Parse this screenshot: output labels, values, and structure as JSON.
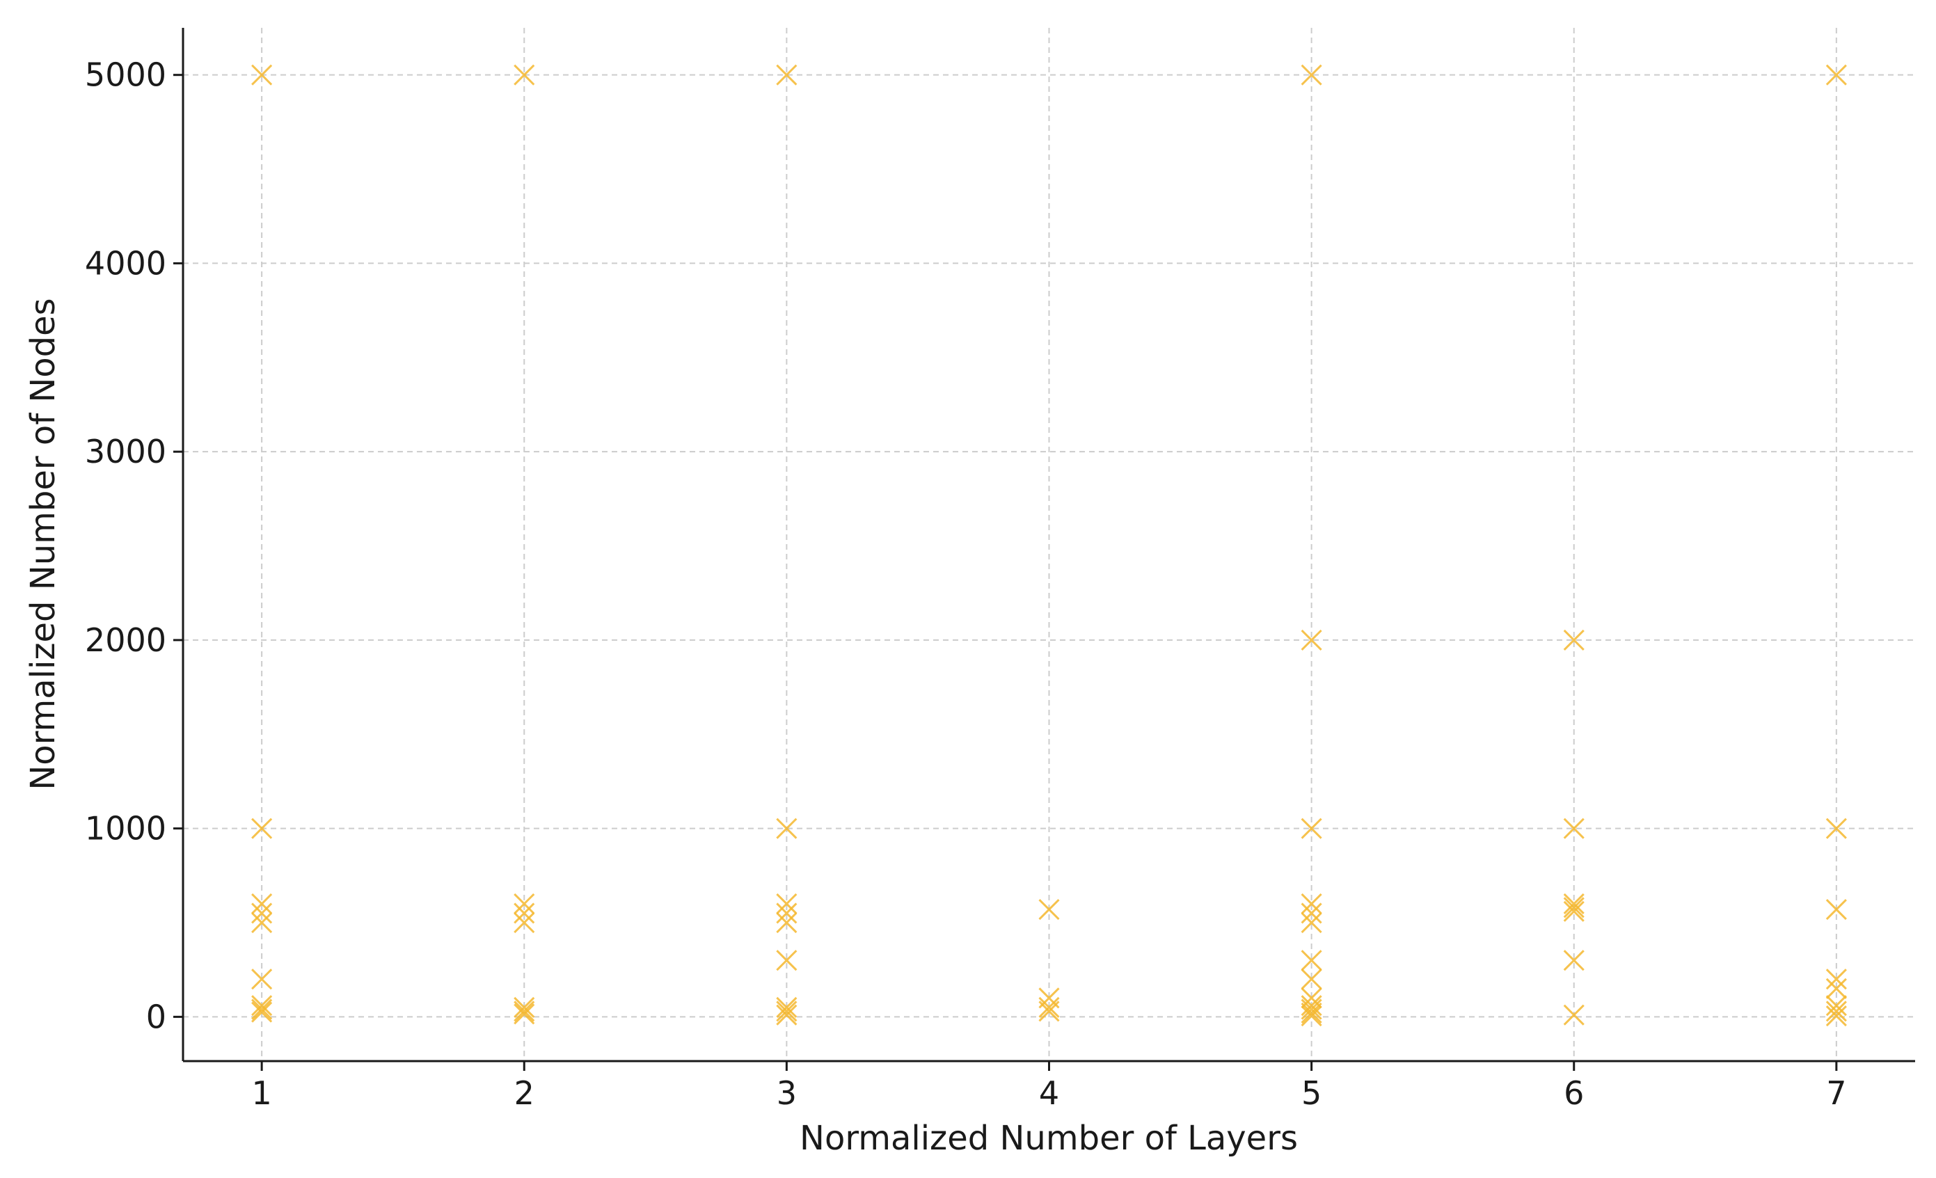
{
  "chart_data": {
    "type": "scatter",
    "title": "",
    "xlabel": "Normalized Number of Layers",
    "ylabel": "Normalized Number of Nodes",
    "xlim": [
      0.7,
      7.3
    ],
    "ylim": [
      -235,
      5250
    ],
    "xticks": [
      1,
      2,
      3,
      4,
      5,
      6,
      7
    ],
    "yticks": [
      0,
      1000,
      2000,
      3000,
      4000,
      5000
    ],
    "grid": true,
    "marker": "x",
    "color": "#f5b82e",
    "points": [
      {
        "x": 1,
        "y": 5000
      },
      {
        "x": 1,
        "y": 1000
      },
      {
        "x": 1,
        "y": 600
      },
      {
        "x": 1,
        "y": 550
      },
      {
        "x": 1,
        "y": 500
      },
      {
        "x": 1,
        "y": 200
      },
      {
        "x": 1,
        "y": 60
      },
      {
        "x": 1,
        "y": 40
      },
      {
        "x": 1,
        "y": 25
      },
      {
        "x": 2,
        "y": 5000
      },
      {
        "x": 2,
        "y": 600
      },
      {
        "x": 2,
        "y": 550
      },
      {
        "x": 2,
        "y": 500
      },
      {
        "x": 2,
        "y": 50
      },
      {
        "x": 2,
        "y": 30
      },
      {
        "x": 2,
        "y": 15
      },
      {
        "x": 3,
        "y": 5000
      },
      {
        "x": 3,
        "y": 1000
      },
      {
        "x": 3,
        "y": 600
      },
      {
        "x": 3,
        "y": 550
      },
      {
        "x": 3,
        "y": 500
      },
      {
        "x": 3,
        "y": 300
      },
      {
        "x": 3,
        "y": 50
      },
      {
        "x": 3,
        "y": 30
      },
      {
        "x": 3,
        "y": 10
      },
      {
        "x": 4,
        "y": 570
      },
      {
        "x": 4,
        "y": 100
      },
      {
        "x": 4,
        "y": 50
      },
      {
        "x": 4,
        "y": 30
      },
      {
        "x": 5,
        "y": 5000
      },
      {
        "x": 5,
        "y": 2000
      },
      {
        "x": 5,
        "y": 1000
      },
      {
        "x": 5,
        "y": 600
      },
      {
        "x": 5,
        "y": 550
      },
      {
        "x": 5,
        "y": 500
      },
      {
        "x": 5,
        "y": 300
      },
      {
        "x": 5,
        "y": 200
      },
      {
        "x": 5,
        "y": 100
      },
      {
        "x": 5,
        "y": 60
      },
      {
        "x": 5,
        "y": 40
      },
      {
        "x": 5,
        "y": 20
      },
      {
        "x": 5,
        "y": 5
      },
      {
        "x": 6,
        "y": 2000
      },
      {
        "x": 6,
        "y": 1000
      },
      {
        "x": 6,
        "y": 600
      },
      {
        "x": 6,
        "y": 580
      },
      {
        "x": 6,
        "y": 560
      },
      {
        "x": 6,
        "y": 300
      },
      {
        "x": 6,
        "y": 10
      },
      {
        "x": 7,
        "y": 5000
      },
      {
        "x": 7,
        "y": 1000
      },
      {
        "x": 7,
        "y": 570
      },
      {
        "x": 7,
        "y": 200
      },
      {
        "x": 7,
        "y": 150
      },
      {
        "x": 7,
        "y": 60
      },
      {
        "x": 7,
        "y": 30
      },
      {
        "x": 7,
        "y": 5
      }
    ]
  }
}
